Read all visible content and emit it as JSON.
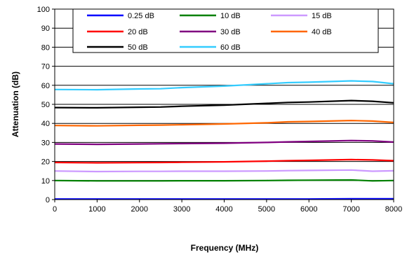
{
  "chart_data": {
    "type": "line",
    "xlabel": "Frequency (MHz)",
    "ylabel": "Attenuation (dB)",
    "xlim": [
      0,
      8000
    ],
    "ylim": [
      0,
      100
    ],
    "x_ticks": [
      "0",
      "1000",
      "2000",
      "3000",
      "4000",
      "5000",
      "6000",
      "7000",
      "8000"
    ],
    "y_ticks": [
      "0",
      "10",
      "20",
      "30",
      "40",
      "50",
      "60",
      "70",
      "80",
      "90",
      "100"
    ],
    "grid": "horizontal",
    "legend_position": "top",
    "x": [
      0,
      1000,
      2000,
      2500,
      3000,
      4000,
      5000,
      5500,
      6000,
      7000,
      7500,
      8000
    ],
    "series": [
      {
        "name": "0.25 dB",
        "color": "#0000ff",
        "values": [
          0.3,
          0.3,
          0.3,
          0.3,
          0.3,
          0.3,
          0.3,
          0.3,
          0.3,
          0.4,
          0.4,
          0.4
        ]
      },
      {
        "name": "10 dB",
        "color": "#008000",
        "values": [
          10.0,
          9.8,
          9.8,
          9.8,
          9.9,
          9.9,
          10.0,
          10.1,
          10.2,
          10.3,
          9.8,
          10.0
        ]
      },
      {
        "name": "15 dB",
        "color": "#cc99ff",
        "values": [
          15.0,
          14.7,
          14.8,
          14.8,
          14.9,
          14.9,
          15.0,
          15.2,
          15.3,
          15.5,
          14.9,
          15.1
        ]
      },
      {
        "name": "20 dB",
        "color": "#ff0000",
        "values": [
          19.5,
          19.3,
          19.4,
          19.5,
          19.6,
          19.8,
          20.2,
          20.4,
          20.6,
          21.0,
          20.8,
          20.4
        ]
      },
      {
        "name": "30 dB",
        "color": "#800080",
        "values": [
          29.2,
          29.0,
          29.2,
          29.3,
          29.4,
          29.6,
          30.0,
          30.3,
          30.5,
          31.0,
          30.8,
          30.2
        ]
      },
      {
        "name": "40 dB",
        "color": "#ff6600",
        "values": [
          38.9,
          38.7,
          39.0,
          39.1,
          39.3,
          39.7,
          40.3,
          40.8,
          41.0,
          41.5,
          41.2,
          40.5
        ]
      },
      {
        "name": "50 dB",
        "color": "#000000",
        "values": [
          48.3,
          48.2,
          48.5,
          48.6,
          49.0,
          49.6,
          50.5,
          51.0,
          51.2,
          52.0,
          51.6,
          50.8
        ]
      },
      {
        "name": "60 dB",
        "color": "#33ccff",
        "values": [
          57.8,
          57.7,
          58.1,
          58.2,
          58.8,
          59.6,
          60.8,
          61.4,
          61.6,
          62.3,
          62.0,
          60.8
        ]
      }
    ]
  }
}
